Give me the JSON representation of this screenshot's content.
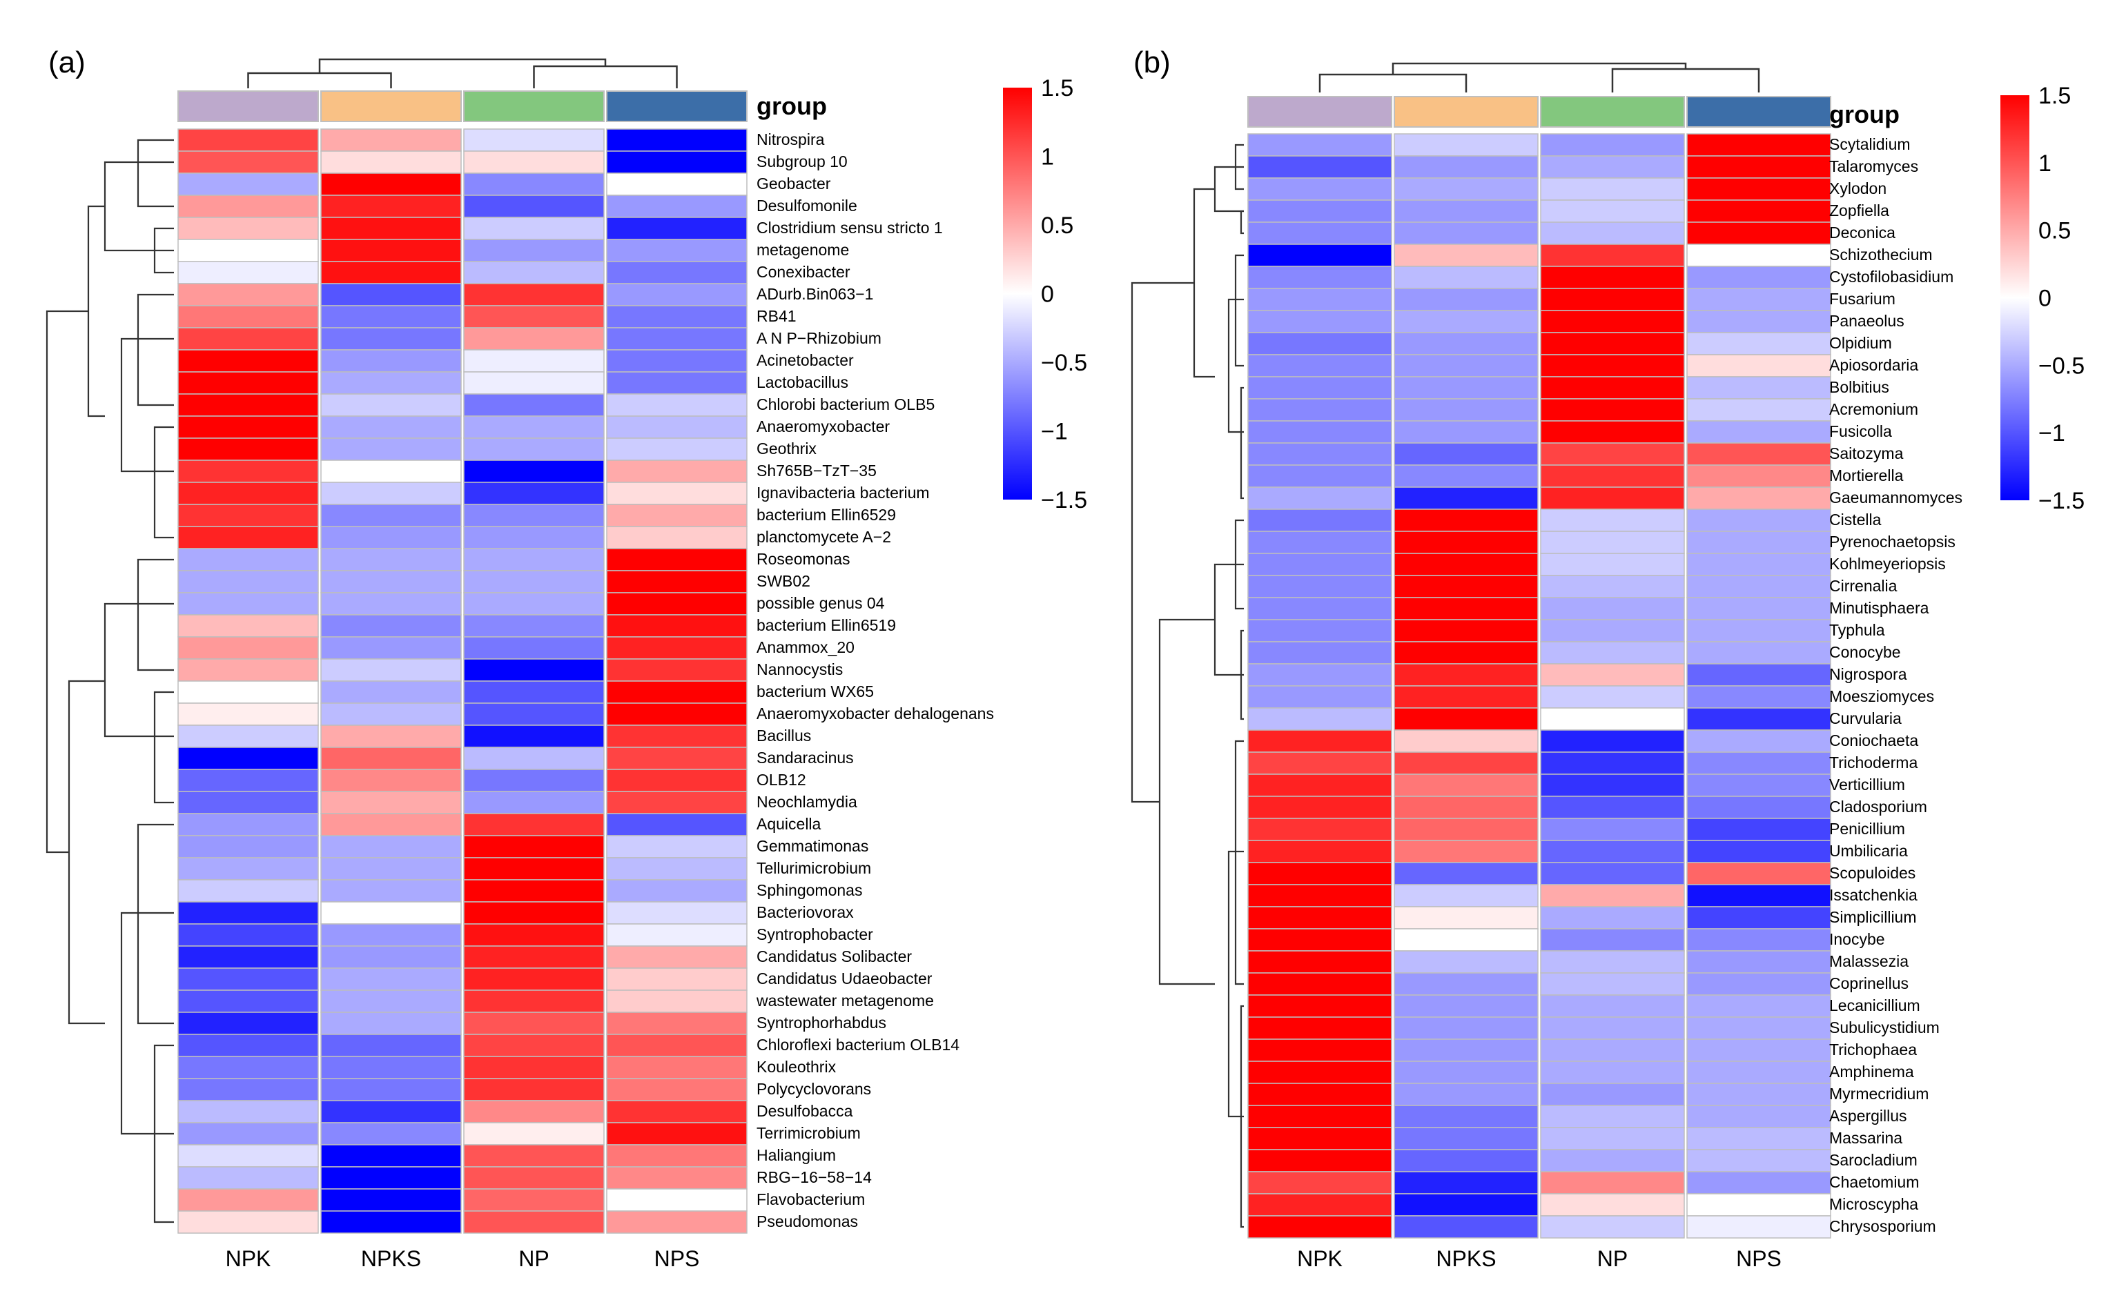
{
  "chart_data": [
    {
      "type": "heatmap",
      "panel_label": "(a)",
      "group_label": "group",
      "columns": [
        "NPK",
        "NPKS",
        "NP",
        "NPS"
      ],
      "group_colors": [
        "#bda9cc",
        "#f9c185",
        "#83c77e",
        "#3c6ea8"
      ],
      "color_scale": {
        "min": -1.5,
        "max": 1.5,
        "low": "#0000ff",
        "mid": "#ffffff",
        "high": "#ff0000"
      },
      "legend_ticks": [
        "1.5",
        "1",
        "0.5",
        "0",
        "−0.5",
        "−1",
        "−1.5"
      ],
      "rows": [
        "Nitrospira",
        "Subgroup 10",
        "Geobacter",
        "Desulfomonile",
        "Clostridium sensu stricto 1",
        "metagenome",
        "Conexibacter",
        "ADurb.Bin063−1",
        "RB41",
        "A N P−Rhizobium",
        "Acinetobacter",
        "Lactobacillus",
        "Chlorobi bacterium OLB5",
        "Anaeromyxobacter",
        "Geothrix",
        "Sh765B−TzT−35",
        "Ignavibacteria bacterium",
        "bacterium Ellin6529",
        "planctomycete A−2",
        "Roseomonas",
        "SWB02",
        "possible genus 04",
        "bacterium Ellin6519",
        "Anammox_20",
        "Nannocystis",
        "bacterium WX65",
        "Anaeromyxobacter dehalogenans",
        "Bacillus",
        "Sandaracinus",
        "OLB12",
        "Neochlamydia",
        "Aquicella",
        "Gemmatimonas",
        "Tellurimicrobium",
        "Sphingomonas",
        "Bacteriovorax",
        "Syntrophobacter",
        "Candidatus Solibacter",
        "Candidatus Udaeobacter",
        "wastewater metagenome",
        "Syntrophorhabdus",
        "Chloroflexi bacterium OLB14",
        "Kouleothrix",
        "Polycyclovorans",
        "Desulfobacca",
        "Terrimicrobium",
        "Haliangium",
        "RBG−16−58−14",
        "Flavobacterium",
        "Pseudomonas"
      ],
      "values": [
        [
          1.1,
          0.5,
          -0.2,
          -1.5
        ],
        [
          1.0,
          0.2,
          0.2,
          -1.5
        ],
        [
          -0.5,
          1.5,
          -0.7,
          0.0
        ],
        [
          0.6,
          1.3,
          -1.0,
          -0.6
        ],
        [
          0.4,
          1.4,
          -0.3,
          -1.3
        ],
        [
          0.0,
          1.4,
          -0.6,
          -0.6
        ],
        [
          -0.1,
          1.4,
          -0.4,
          -0.8
        ],
        [
          0.6,
          -1.0,
          1.2,
          -0.6
        ],
        [
          0.8,
          -0.8,
          1.0,
          -0.8
        ],
        [
          1.1,
          -0.8,
          0.6,
          -0.8
        ],
        [
          1.5,
          -0.6,
          -0.1,
          -0.8
        ],
        [
          1.5,
          -0.5,
          -0.1,
          -0.8
        ],
        [
          1.5,
          -0.3,
          -0.8,
          -0.3
        ],
        [
          1.5,
          -0.5,
          -0.5,
          -0.4
        ],
        [
          1.5,
          -0.5,
          -0.5,
          -0.3
        ],
        [
          1.2,
          0.0,
          -1.5,
          0.5
        ],
        [
          1.3,
          -0.3,
          -1.2,
          0.2
        ],
        [
          1.2,
          -0.7,
          -0.7,
          0.5
        ],
        [
          1.3,
          -0.6,
          -0.6,
          0.3
        ],
        [
          -0.5,
          -0.5,
          -0.5,
          1.5
        ],
        [
          -0.5,
          -0.5,
          -0.5,
          1.5
        ],
        [
          -0.5,
          -0.5,
          -0.5,
          1.5
        ],
        [
          0.4,
          -0.7,
          -0.7,
          1.4
        ],
        [
          0.6,
          -0.6,
          -0.8,
          1.3
        ],
        [
          0.5,
          -0.3,
          -1.5,
          1.2
        ],
        [
          0.0,
          -0.5,
          -1.0,
          1.5
        ],
        [
          0.1,
          -0.4,
          -1.0,
          1.5
        ],
        [
          -0.3,
          0.5,
          -1.4,
          1.2
        ],
        [
          -1.5,
          0.9,
          -0.4,
          1.1
        ],
        [
          -0.9,
          0.7,
          -0.8,
          1.2
        ],
        [
          -0.9,
          0.5,
          -0.6,
          1.1
        ],
        [
          -0.6,
          0.6,
          1.2,
          -1.0
        ],
        [
          -0.6,
          -0.5,
          1.5,
          -0.3
        ],
        [
          -0.5,
          -0.5,
          1.5,
          -0.4
        ],
        [
          -0.3,
          -0.5,
          1.5,
          -0.5
        ],
        [
          -1.3,
          0.0,
          1.5,
          -0.2
        ],
        [
          -1.1,
          -0.6,
          1.4,
          -0.1
        ],
        [
          -1.3,
          -0.6,
          1.3,
          0.5
        ],
        [
          -1.0,
          -0.5,
          1.3,
          0.3
        ],
        [
          -1.0,
          -0.5,
          1.2,
          0.3
        ],
        [
          -1.3,
          -0.5,
          1.0,
          0.8
        ],
        [
          -1.0,
          -0.9,
          1.1,
          1.0
        ],
        [
          -0.8,
          -0.8,
          1.2,
          0.8
        ],
        [
          -0.8,
          -0.8,
          1.2,
          0.8
        ],
        [
          -0.4,
          -1.2,
          0.7,
          1.2
        ],
        [
          -0.6,
          -0.7,
          0.1,
          1.4
        ],
        [
          -0.2,
          -1.5,
          1.0,
          0.8
        ],
        [
          -0.4,
          -1.5,
          1.0,
          0.7
        ],
        [
          0.6,
          -1.5,
          0.9,
          0.0
        ],
        [
          0.2,
          -1.5,
          1.0,
          0.6
        ]
      ]
    },
    {
      "type": "heatmap",
      "panel_label": "(b)",
      "group_label": "group",
      "columns": [
        "NPK",
        "NPKS",
        "NP",
        "NPS"
      ],
      "group_colors": [
        "#bda9cc",
        "#f9c185",
        "#83c77e",
        "#3c6ea8"
      ],
      "color_scale": {
        "min": -1.5,
        "max": 1.5,
        "low": "#0000ff",
        "mid": "#ffffff",
        "high": "#ff0000"
      },
      "legend_ticks": [
        "1.5",
        "1",
        "0.5",
        "0",
        "−0.5",
        "−1",
        "−1.5"
      ],
      "rows": [
        "Scytalidium",
        "Talaromyces",
        "Xylodon",
        "Zopfiella",
        "Deconica",
        "Schizothecium",
        "Cystofilobasidium",
        "Fusarium",
        "Panaeolus",
        "Olpidium",
        "Apiosordaria",
        "Bolbitius",
        "Acremonium",
        "Fusicolla",
        "Saitozyma",
        "Mortierella",
        "Gaeumannomyces",
        "Cistella",
        "Pyrenochaetopsis",
        "Kohlmeyeriopsis",
        "Cirrenalia",
        "Minutisphaera",
        "Typhula",
        "Conocybe",
        "Nigrospora",
        "Moesziomyces",
        "Curvularia",
        "Coniochaeta",
        "Trichoderma",
        "Verticillium",
        "Cladosporium",
        "Penicillium",
        "Umbilicaria",
        "Scopuloides",
        "Issatchenkia",
        "Simplicillium",
        "Inocybe",
        "Malassezia",
        "Coprinellus",
        "Lecanicillium",
        "Subulicystidium",
        "Trichophaea",
        "Amphinema",
        "Myrmecridium",
        "Aspergillus",
        "Massarina",
        "Sarocladium",
        "Chaetomium",
        "Microscypha",
        "Chrysosporium"
      ],
      "values": [
        [
          -0.6,
          -0.3,
          -0.6,
          1.5
        ],
        [
          -1.0,
          -0.6,
          -0.5,
          1.5
        ],
        [
          -0.6,
          -0.5,
          -0.3,
          1.5
        ],
        [
          -0.7,
          -0.6,
          -0.3,
          1.5
        ],
        [
          -0.7,
          -0.6,
          -0.4,
          1.5
        ],
        [
          -1.5,
          0.4,
          1.2,
          0.0
        ],
        [
          -0.7,
          -0.4,
          1.5,
          -0.6
        ],
        [
          -0.6,
          -0.6,
          1.5,
          -0.5
        ],
        [
          -0.6,
          -0.5,
          1.5,
          -0.5
        ],
        [
          -0.8,
          -0.6,
          1.5,
          -0.3
        ],
        [
          -0.7,
          -0.6,
          1.5,
          0.2
        ],
        [
          -0.7,
          -0.6,
          1.5,
          -0.4
        ],
        [
          -0.7,
          -0.6,
          1.5,
          -0.3
        ],
        [
          -0.7,
          -0.6,
          1.5,
          -0.5
        ],
        [
          -0.7,
          -0.9,
          1.1,
          1.0
        ],
        [
          -0.7,
          -0.7,
          1.2,
          0.7
        ],
        [
          -0.5,
          -1.3,
          1.3,
          0.5
        ],
        [
          -0.8,
          1.5,
          -0.3,
          -0.5
        ],
        [
          -0.7,
          1.5,
          -0.3,
          -0.5
        ],
        [
          -0.7,
          1.5,
          -0.3,
          -0.5
        ],
        [
          -0.7,
          1.5,
          -0.4,
          -0.5
        ],
        [
          -0.7,
          1.5,
          -0.5,
          -0.5
        ],
        [
          -0.7,
          1.5,
          -0.5,
          -0.5
        ],
        [
          -0.7,
          1.5,
          -0.4,
          -0.5
        ],
        [
          -0.6,
          1.3,
          0.4,
          -0.9
        ],
        [
          -0.6,
          1.3,
          -0.3,
          -0.7
        ],
        [
          -0.4,
          1.5,
          0.0,
          -1.2
        ],
        [
          1.3,
          0.3,
          -1.3,
          -0.5
        ],
        [
          1.1,
          1.1,
          -1.2,
          -0.7
        ],
        [
          1.3,
          0.8,
          -1.2,
          -0.7
        ],
        [
          1.3,
          0.9,
          -1.0,
          -0.8
        ],
        [
          1.2,
          0.9,
          -0.7,
          -1.1
        ],
        [
          1.3,
          0.8,
          -0.9,
          -1.1
        ],
        [
          1.5,
          -0.9,
          -0.9,
          0.9
        ],
        [
          1.5,
          -0.3,
          0.5,
          -1.4
        ],
        [
          1.5,
          0.1,
          -0.5,
          -1.1
        ],
        [
          1.5,
          0.0,
          -0.7,
          -0.7
        ],
        [
          1.5,
          -0.4,
          -0.4,
          -0.6
        ],
        [
          1.5,
          -0.6,
          -0.4,
          -0.6
        ],
        [
          1.5,
          -0.6,
          -0.5,
          -0.5
        ],
        [
          1.5,
          -0.6,
          -0.5,
          -0.5
        ],
        [
          1.5,
          -0.6,
          -0.5,
          -0.5
        ],
        [
          1.5,
          -0.6,
          -0.5,
          -0.5
        ],
        [
          1.5,
          -0.6,
          -0.6,
          -0.5
        ],
        [
          1.5,
          -0.8,
          -0.4,
          -0.5
        ],
        [
          1.5,
          -0.8,
          -0.4,
          -0.4
        ],
        [
          1.5,
          -0.9,
          -0.5,
          -0.4
        ],
        [
          1.1,
          -1.3,
          0.7,
          -0.6
        ],
        [
          1.3,
          -1.4,
          0.2,
          0.0
        ],
        [
          1.5,
          -1.0,
          -0.3,
          -0.1
        ]
      ]
    }
  ]
}
